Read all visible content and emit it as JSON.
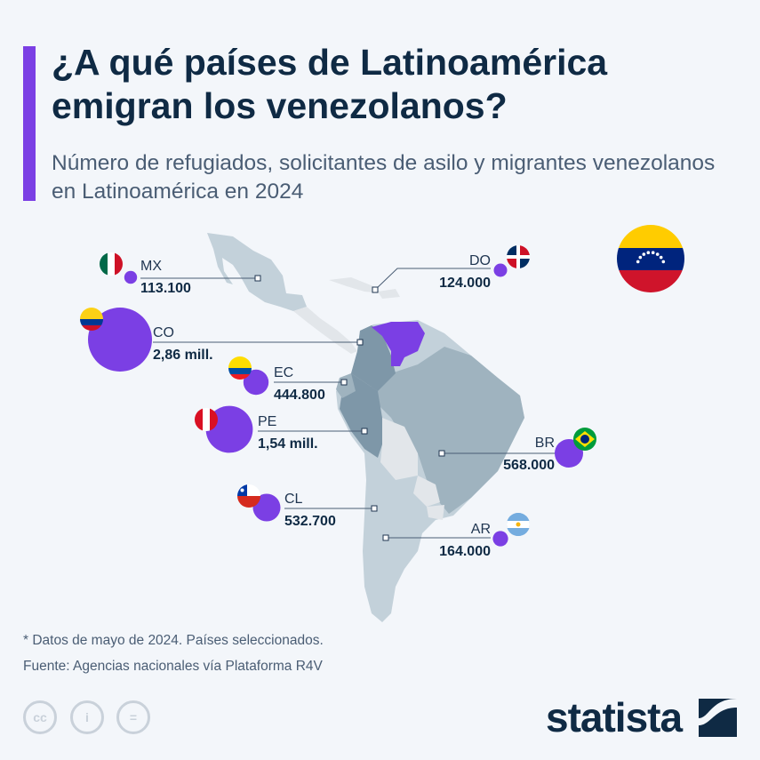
{
  "header": {
    "title": "¿A qué países de Latinoamérica emigran los venezolanos?",
    "subtitle": "Número de refugiados, solicitantes de asilo y migrantes venezolanos en Latinoamérica en 2024"
  },
  "chart_data": {
    "type": "bubble-map",
    "unit": "personas",
    "highlight_country": "Venezuela",
    "points": [
      {
        "code": "MX",
        "label": "113.100",
        "value": 113100
      },
      {
        "code": "DO",
        "label": "124.000",
        "value": 124000
      },
      {
        "code": "CO",
        "label": "2,86 mill.",
        "value": 2860000
      },
      {
        "code": "EC",
        "label": "444.800",
        "value": 444800
      },
      {
        "code": "PE",
        "label": "1,54 mill.",
        "value": 1540000
      },
      {
        "code": "BR",
        "label": "568.000",
        "value": 568000
      },
      {
        "code": "CL",
        "label": "532.700",
        "value": 532700
      },
      {
        "code": "AR",
        "label": "164.000",
        "value": 164000
      }
    ]
  },
  "colors": {
    "accent": "#7b3fe4",
    "title": "#0f2a44",
    "map_dark": "#7e97a8",
    "map_mid": "#9fb3bf",
    "map_light": "#c3d1da",
    "map_other": "#e2e6ea"
  },
  "footer": {
    "note": "* Datos de mayo de 2024. Países seleccionados.",
    "source": "Fuente: Agencias nacionales vía Plataforma R4V",
    "license_icons": [
      "cc-icon",
      "attribution-icon",
      "no-derivatives-icon"
    ],
    "brand": "statista"
  }
}
